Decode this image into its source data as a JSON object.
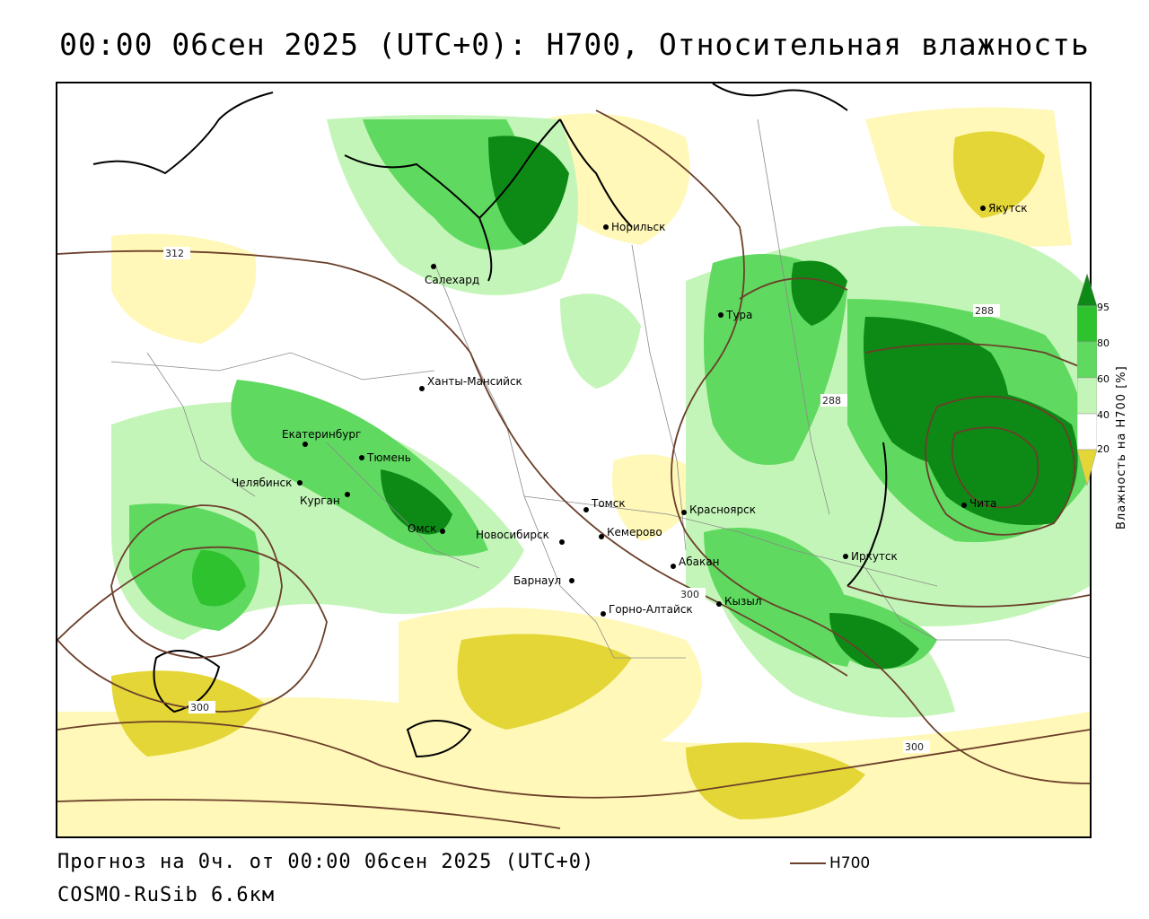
{
  "title": "00:00 06сен 2025 (UTC+0): H700, Относительная влажность",
  "footer": {
    "forecast": "Прогноз на 0ч. от 00:00 06сен 2025 (UTC+0)",
    "model": "COSMO-RuSib 6.6км"
  },
  "key": {
    "label": "H700",
    "color": "#6b3f2a"
  },
  "legend": {
    "title": "Влажность на H700 [%]",
    "ticks": [
      "95",
      "80",
      "60",
      "40",
      "20"
    ],
    "colors": [
      "#0d8a15",
      "#2ec32e",
      "#5fd95f",
      "#c4f5b8",
      "#ffffff",
      "#fff8b8",
      "#e4d636"
    ]
  },
  "map": {
    "cities": [
      "Якутск",
      "Норильск",
      "Салехард",
      "Тура",
      "Ханты-Мансийск",
      "Екатеринбург",
      "Тюмень",
      "Челябинск",
      "Курган",
      "Омск",
      "Новосибирск",
      "Томск",
      "Кемерово",
      "Красноярск",
      "Абакан",
      "Барнаул",
      "Горно-Алтайск",
      "Кызыл",
      "Иркутск",
      "Чита"
    ],
    "isolines": [
      "312",
      "288",
      "288",
      "300",
      "300",
      "300"
    ]
  }
}
